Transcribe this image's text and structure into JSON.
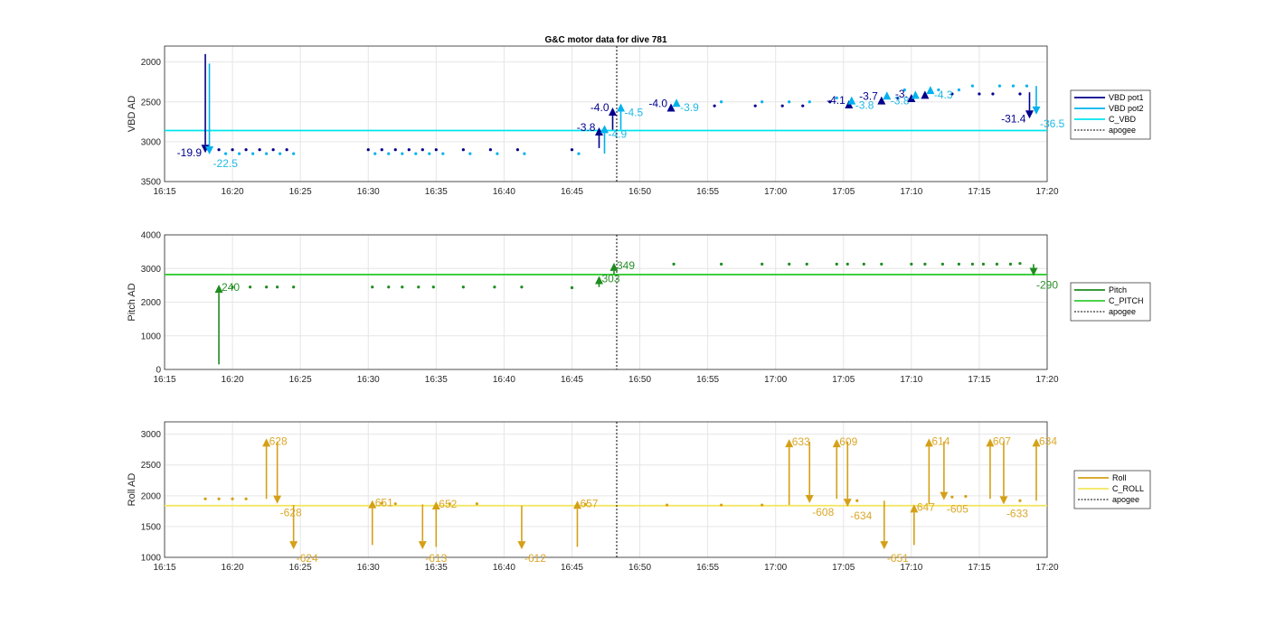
{
  "chart_data": [
    {
      "type": "scatter",
      "title": "G&C motor data for dive 781",
      "ylabel": "VBD AD",
      "xlim": [
        "16:15",
        "17:20"
      ],
      "ylim": [
        1800,
        3500
      ],
      "y_reversed": true,
      "xticks": [
        "16:15",
        "16:20",
        "16:25",
        "16:30",
        "16:35",
        "16:40",
        "16:45",
        "16:50",
        "16:55",
        "17:00",
        "17:05",
        "17:10",
        "17:15",
        "17:20"
      ],
      "yticks": [
        "2000",
        "2500",
        "3000",
        "3500"
      ],
      "grid": true,
      "legend_position": "right",
      "legend": [
        "VBD pot1",
        "VBD pot2",
        "C_VBD",
        "apogee"
      ],
      "colors": {
        "pot1": "#00008b",
        "pot2": "#00b2ee",
        "c_vbd": "#00e5ee",
        "apogee": "#000000",
        "label1": "#00008b",
        "label2": "#1fb8e8"
      },
      "c_vbd": 2860,
      "apogee": "16:48.3",
      "series": [
        {
          "name": "VBD pot1",
          "x": [
            "16:19",
            "16:20",
            "16:21",
            "16:22",
            "16:23",
            "16:24",
            "16:30",
            "16:31",
            "16:32",
            "16:33",
            "16:34",
            "16:35",
            "16:37",
            "16:39",
            "16:41",
            "16:45",
            "16:55.5",
            "16:58.5",
            "17:00.5",
            "17:02",
            "17:04",
            "17:09",
            "17:11",
            "17:13",
            "17:15",
            "17:16",
            "17:18"
          ],
          "y": [
            3100,
            3100,
            3100,
            3100,
            3100,
            3100,
            3100,
            3100,
            3100,
            3100,
            3100,
            3100,
            3100,
            3100,
            3100,
            3100,
            2550,
            2550,
            2550,
            2550,
            2500,
            2450,
            2400,
            2400,
            2400,
            2400,
            2400
          ]
        },
        {
          "name": "VBD pot2",
          "x": [
            "16:19.5",
            "16:20.5",
            "16:21.5",
            "16:22.5",
            "16:23.5",
            "16:24.5",
            "16:30.5",
            "16:31.5",
            "16:32.5",
            "16:33.5",
            "16:34.5",
            "16:35.5",
            "16:37.5",
            "16:39.5",
            "16:41.5",
            "16:45.5",
            "16:56",
            "16:59",
            "17:01",
            "17:02.5",
            "17:04.5",
            "17:09.5",
            "17:12",
            "17:13.5",
            "17:14.5",
            "17:16.5",
            "17:17.5",
            "17:18.5"
          ],
          "y": [
            3150,
            3150,
            3150,
            3150,
            3150,
            3150,
            3150,
            3150,
            3150,
            3150,
            3150,
            3150,
            3150,
            3150,
            3150,
            3150,
            2500,
            2500,
            2500,
            2500,
            2450,
            2350,
            2350,
            2350,
            2300,
            2300,
            2300,
            2300
          ]
        }
      ],
      "moves": [
        {
          "series": "VBD pot1",
          "x": "16:18",
          "from": 1900,
          "to": 3140,
          "label": "-19.9"
        },
        {
          "series": "VBD pot2",
          "x": "16:18.3",
          "from": 2020,
          "to": 3160,
          "label": "-22.5"
        },
        {
          "series": "VBD pot1",
          "x": "16:47",
          "from": 3080,
          "to": 2820,
          "label": "-3.8"
        },
        {
          "series": "VBD pot2",
          "x": "16:47.4",
          "from": 3150,
          "to": 2790,
          "label": "-4.9"
        },
        {
          "series": "VBD pot1",
          "x": "16:48",
          "from": 2850,
          "to": 2570,
          "label": "-4.0"
        },
        {
          "series": "VBD pot2",
          "x": "16:48.6",
          "from": 2850,
          "to": 2520,
          "label": "-4.5"
        },
        {
          "series": "VBD pot1",
          "x": "16:52.3",
          "from": 2560,
          "to": 2520,
          "label": "-4.0"
        },
        {
          "series": "VBD pot2",
          "x": "16:52.7",
          "from": 2500,
          "to": 2460,
          "label": "-3.9"
        },
        {
          "series": "VBD pot1",
          "x": "17:05.4",
          "from": 2520,
          "to": 2480,
          "label": "-4.1"
        },
        {
          "series": "VBD pot2",
          "x": "17:05.6",
          "from": 2470,
          "to": 2430,
          "label": "-3.8"
        },
        {
          "series": "VBD pot1",
          "x": "17:07.8",
          "from": 2470,
          "to": 2430,
          "label": "-3.7"
        },
        {
          "series": "VBD pot2",
          "x": "17:08.2",
          "from": 2410,
          "to": 2370,
          "label": "-3.8"
        },
        {
          "series": "VBD pot1",
          "x": "17:10",
          "from": 2440,
          "to": 2400,
          "label": "-3."
        },
        {
          "series": "VBD pot2",
          "x": "17:10.3",
          "from": 2400,
          "to": 2360,
          "label": ""
        },
        {
          "series": "VBD pot1",
          "x": "17:11",
          "from": 2400,
          "to": 2360,
          "label": ""
        },
        {
          "series": "VBD pot2",
          "x": "17:11.4",
          "from": 2340,
          "to": 2300,
          "label": "-4.3"
        },
        {
          "series": "VBD pot1",
          "x": "17:18.7",
          "from": 2380,
          "to": 2710,
          "label": "-31.4"
        },
        {
          "series": "VBD pot2",
          "x": "17:19.2",
          "from": 2300,
          "to": 2660,
          "label": "-36.5"
        }
      ]
    },
    {
      "type": "scatter",
      "ylabel": "Pitch AD",
      "xlim": [
        "16:15",
        "17:20"
      ],
      "ylim": [
        0,
        4000
      ],
      "xticks": [
        "16:15",
        "16:20",
        "16:25",
        "16:30",
        "16:35",
        "16:40",
        "16:45",
        "16:50",
        "16:55",
        "17:00",
        "17:05",
        "17:10",
        "17:15",
        "17:20"
      ],
      "yticks": [
        "0",
        "1000",
        "2000",
        "3000",
        "4000"
      ],
      "grid": true,
      "legend_position": "right",
      "legend": [
        "Pitch",
        "C_PITCH",
        "apogee"
      ],
      "colors": {
        "pitch": "#1e8c1e",
        "c_pitch": "#33cc33",
        "apogee": "#000000",
        "label": "#2a902a"
      },
      "c_pitch": 2820,
      "apogee": "16:48.3",
      "series": [
        {
          "name": "Pitch",
          "x": [
            "16:20",
            "16:21.3",
            "16:22.5",
            "16:23.3",
            "16:24.5",
            "16:30.3",
            "16:31.5",
            "16:32.5",
            "16:33.7",
            "16:34.8",
            "16:37",
            "16:39.3",
            "16:41.3",
            "16:45",
            "16:52.5",
            "16:56",
            "16:59",
            "17:01",
            "17:02.3",
            "17:04.5",
            "17:05.3",
            "17:06.5",
            "17:07.8",
            "17:10",
            "17:11",
            "17:12.3",
            "17:13.5",
            "17:14.5",
            "17:15.3",
            "17:16.3",
            "17:17.3",
            "17:18"
          ],
          "y": [
            2450,
            2450,
            2450,
            2450,
            2450,
            2450,
            2450,
            2450,
            2450,
            2450,
            2450,
            2450,
            2450,
            2430,
            3130,
            3130,
            3130,
            3130,
            3130,
            3130,
            3130,
            3130,
            3130,
            3130,
            3130,
            3130,
            3130,
            3130,
            3130,
            3130,
            3130,
            3150
          ]
        }
      ],
      "moves": [
        {
          "x": "16:19",
          "from": 150,
          "to": 2520,
          "label": "240"
        },
        {
          "x": "16:47",
          "from": 2450,
          "to": 2780,
          "label": "303"
        },
        {
          "x": "16:48.1",
          "from": 2820,
          "to": 3170,
          "label": "349"
        },
        {
          "x": "17:19",
          "from": 3130,
          "to": 2780,
          "label": "-290"
        }
      ]
    },
    {
      "type": "scatter",
      "ylabel": "Roll AD",
      "xlim": [
        "16:15",
        "17:20"
      ],
      "ylim": [
        1000,
        3200
      ],
      "xticks": [
        "16:15",
        "16:20",
        "16:25",
        "16:30",
        "16:35",
        "16:40",
        "16:45",
        "16:50",
        "16:55",
        "17:00",
        "17:05",
        "17:10",
        "17:15",
        "17:20"
      ],
      "yticks": [
        "1000",
        "1500",
        "2000",
        "2500",
        "3000"
      ],
      "grid": true,
      "legend_position": "right",
      "legend": [
        "Roll",
        "C_ROLL",
        "apogee"
      ],
      "colors": {
        "roll": "#d4a017",
        "c_roll": "#f2e55c",
        "apogee": "#000000",
        "label": "#dba82a"
      },
      "c_roll": 1840,
      "apogee": "16:48.3",
      "series": [
        {
          "name": "Roll",
          "x": [
            "16:18",
            "16:19",
            "16:20",
            "16:21",
            "16:31",
            "16:32",
            "16:36",
            "16:38",
            "16:46",
            "16:52",
            "16:56",
            "16:59",
            "17:06",
            "17:13",
            "17:14",
            "17:18"
          ],
          "y": [
            1950,
            1950,
            1950,
            1950,
            1880,
            1870,
            1870,
            1870,
            1860,
            1850,
            1850,
            1850,
            1920,
            1980,
            1990,
            1920
          ]
        }
      ],
      "moves": [
        {
          "x": "16:22.5",
          "from": 1950,
          "to": 2930,
          "label": "628"
        },
        {
          "x": "16:23.3",
          "from": 2880,
          "to": 1870,
          "label": "-628"
        },
        {
          "x": "16:24.5",
          "from": 1850,
          "to": 1130,
          "label": "-624"
        },
        {
          "x": "16:30.3",
          "from": 1200,
          "to": 1930,
          "label": "651"
        },
        {
          "x": "16:34",
          "from": 1860,
          "to": 1130,
          "label": "-613"
        },
        {
          "x": "16:35",
          "from": 1170,
          "to": 1910,
          "label": "652"
        },
        {
          "x": "16:41.3",
          "from": 1840,
          "to": 1130,
          "label": "-612"
        },
        {
          "x": "16:45.4",
          "from": 1170,
          "to": 1920,
          "label": "657"
        },
        {
          "x": "17:01",
          "from": 1850,
          "to": 2920,
          "label": "633"
        },
        {
          "x": "17:02.5",
          "from": 2880,
          "to": 1880,
          "label": "-608"
        },
        {
          "x": "17:04.5",
          "from": 1950,
          "to": 2920,
          "label": "609"
        },
        {
          "x": "17:05.3",
          "from": 2880,
          "to": 1820,
          "label": "-634"
        },
        {
          "x": "17:08",
          "from": 1920,
          "to": 1130,
          "label": "-651"
        },
        {
          "x": "17:10.2",
          "from": 1200,
          "to": 1860,
          "label": "647"
        },
        {
          "x": "17:11.3",
          "from": 1860,
          "to": 2930,
          "label": "614"
        },
        {
          "x": "17:12.4",
          "from": 2880,
          "to": 1930,
          "label": "-605"
        },
        {
          "x": "17:15.8",
          "from": 1950,
          "to": 2930,
          "label": "607"
        },
        {
          "x": "17:16.8",
          "from": 2880,
          "to": 1860,
          "label": "-633"
        },
        {
          "x": "17:19.2",
          "from": 1920,
          "to": 2930,
          "label": "634"
        }
      ]
    }
  ]
}
